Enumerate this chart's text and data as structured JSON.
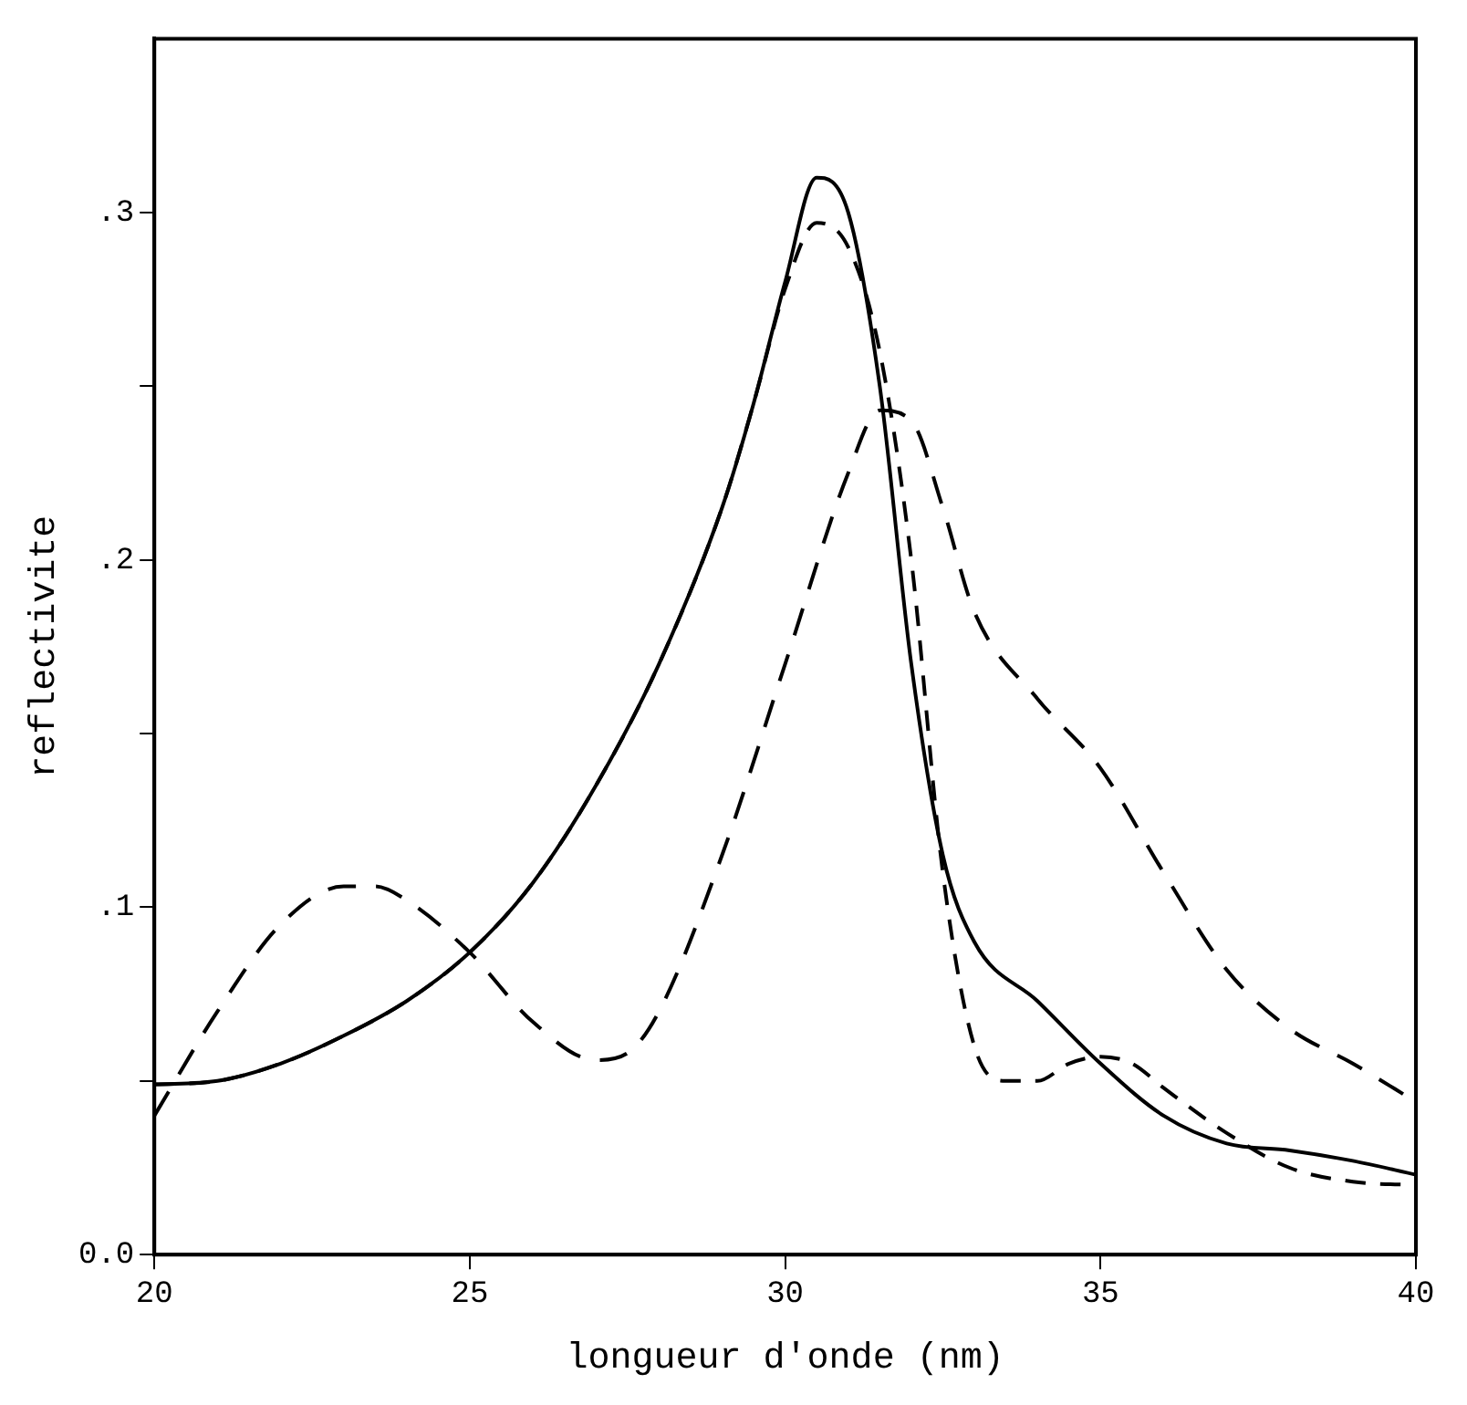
{
  "chart_data": {
    "type": "line",
    "xlabel": "longueur d'onde (nm)",
    "ylabel": "reflectivite",
    "xlim": [
      20,
      40
    ],
    "xticks": [
      20,
      25,
      30,
      35,
      40
    ],
    "ylim": [
      0,
      0.35
    ],
    "yticks": [
      {
        "value": 0,
        "label": "0.0"
      },
      {
        "value": 0.05,
        "label": null
      },
      {
        "value": 0.1,
        "label": ".1"
      },
      {
        "value": 0.15,
        "label": null
      },
      {
        "value": 0.2,
        "label": ".2"
      },
      {
        "value": 0.25,
        "label": null
      },
      {
        "value": 0.3,
        "label": ".3"
      }
    ],
    "grid": false,
    "legend": false,
    "marker": "none",
    "series": [
      {
        "color": "#000000",
        "line_style": "solid",
        "x": [
          20,
          21,
          22,
          23,
          24,
          25,
          26,
          27,
          28,
          29,
          29.5,
          30,
          30.5,
          31,
          31.5,
          32,
          32.5,
          33,
          34,
          35,
          36,
          37,
          38,
          39,
          40
        ],
        "values": [
          0.049,
          0.05,
          0.055,
          0.063,
          0.073,
          0.087,
          0.107,
          0.135,
          0.17,
          0.215,
          0.245,
          0.28,
          0.31,
          0.3,
          0.25,
          0.17,
          0.115,
          0.09,
          0.073,
          0.055,
          0.04,
          0.032,
          0.03,
          0.027,
          0.023
        ]
      },
      {
        "color": "#000000",
        "line_style": "dashed",
        "x": [
          20,
          21,
          22,
          23,
          24,
          25,
          26,
          27,
          28,
          29,
          29.5,
          30,
          30.5,
          31,
          31.5,
          32,
          32.5,
          33,
          33.5,
          34,
          34.5,
          35,
          35.5,
          36,
          37,
          38,
          39,
          40
        ],
        "values": [
          0.049,
          0.05,
          0.055,
          0.063,
          0.073,
          0.087,
          0.107,
          0.135,
          0.17,
          0.215,
          0.245,
          0.278,
          0.297,
          0.29,
          0.26,
          0.2,
          0.11,
          0.06,
          0.05,
          0.05,
          0.055,
          0.057,
          0.055,
          0.048,
          0.035,
          0.025,
          0.021,
          0.02
        ]
      },
      {
        "color": "#000000",
        "line_style": "dashed",
        "x": [
          20,
          21,
          22,
          23,
          23.5,
          24,
          25,
          26,
          27,
          27.5,
          28,
          29,
          30,
          31,
          31.5,
          32,
          32.5,
          33,
          34,
          35,
          36,
          37,
          38,
          39,
          40
        ],
        "values": [
          0.04,
          0.07,
          0.095,
          0.106,
          0.106,
          0.102,
          0.087,
          0.067,
          0.056,
          0.058,
          0.07,
          0.115,
          0.17,
          0.225,
          0.243,
          0.24,
          0.215,
          0.185,
          0.16,
          0.14,
          0.11,
          0.082,
          0.065,
          0.055,
          0.044
        ]
      }
    ]
  }
}
